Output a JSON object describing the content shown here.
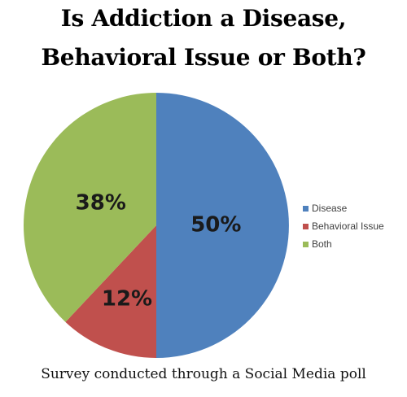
{
  "title": {
    "line1": "Is Addiction a Disease,",
    "line2": "Behavioral Issue or Both?"
  },
  "caption": "Survey conducted through a Social Media poll",
  "chart_data": {
    "type": "pie",
    "title": "Is Addiction a Disease, Behavioral Issue or Both?",
    "categories": [
      "Disease",
      "Behavioral Issue",
      "Both"
    ],
    "values": [
      50,
      12,
      38
    ],
    "labels": [
      "50%",
      "12%",
      "38%"
    ],
    "colors": [
      "#4f81bd",
      "#c0504d",
      "#9bbb59"
    ],
    "legend_position": "right"
  }
}
